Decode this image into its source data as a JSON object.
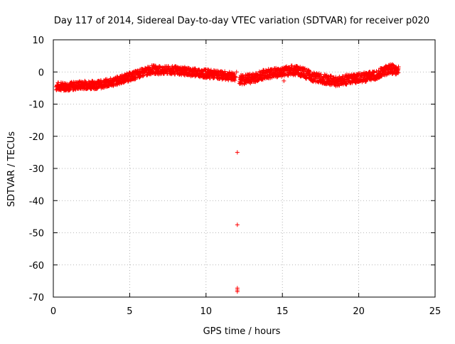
{
  "chart_data": {
    "type": "scatter",
    "title": "Day 117 of 2014, Sidereal Day-to-day VTEC variation (SDTVAR) for receiver p020",
    "xlabel": "GPS time / hours",
    "ylabel": "SDTVAR / TECUs",
    "xlim": [
      0,
      25
    ],
    "ylim": [
      -70,
      10
    ],
    "xticks": [
      0,
      5,
      10,
      15,
      20,
      25
    ],
    "yticks": [
      10,
      0,
      -10,
      -20,
      -30,
      -40,
      -50,
      -60,
      -70
    ],
    "xtick_labels": [
      "0",
      "5",
      "10",
      "15",
      "20",
      "25"
    ],
    "ytick_labels": [
      "10",
      "0",
      "-10",
      "-20",
      "-30",
      "-40",
      "-50",
      "-60",
      "-70"
    ],
    "grid": true,
    "marker": "+",
    "color": "#ff0000",
    "series": [
      {
        "name": "SDTVAR",
        "band_x": [
          0.2,
          1,
          2,
          3,
          4,
          5,
          6,
          6.5,
          7,
          8,
          9,
          10,
          11,
          11.9
        ],
        "band_y": [
          -4.5,
          -4.5,
          -4,
          -4,
          -3,
          -1.5,
          0,
          0.8,
          0.5,
          0.5,
          0,
          -0.5,
          -1,
          -1.5
        ],
        "band_x2": [
          12.2,
          13,
          14,
          15,
          15.5,
          16,
          16.5,
          17,
          18,
          18.5,
          19,
          20,
          21,
          21.5,
          22,
          22.6
        ],
        "band_y2": [
          -2.5,
          -2,
          -0.5,
          0,
          0.5,
          0.5,
          -0.5,
          -1.5,
          -2.5,
          -3,
          -2.5,
          -2,
          -1,
          0,
          1,
          0.5
        ],
        "outliers_x": [
          12.0,
          12.05,
          12.05,
          12.05,
          12.05,
          12.05,
          15.1
        ],
        "outliers_y": [
          0,
          -25,
          -47.5,
          -67.2,
          -67.8,
          -68.3,
          -2.8
        ]
      }
    ]
  }
}
